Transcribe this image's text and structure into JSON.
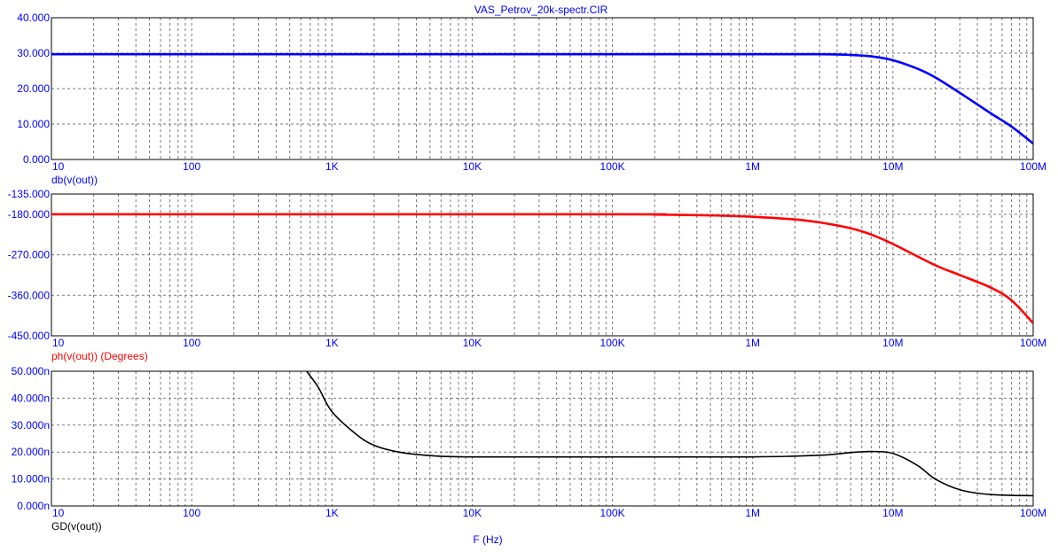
{
  "title": "VAS_Petrov_20k-spectr.CIR",
  "x_axis_label": "F (Hz)",
  "colors": {
    "grid": "#7a7a7a",
    "frame": "#000000",
    "blue": "#0000ff",
    "red": "#ff0000",
    "black": "#000000",
    "background": "#ffffff"
  },
  "chart_data": [
    {
      "type": "line",
      "title": "VAS_Petrov_20k-spectr.CIR",
      "xscale": "log",
      "xlim": [
        10,
        100000000
      ],
      "ylim": [
        0,
        40
      ],
      "ylabel": "db(v(out))",
      "x_tick_values": [
        10,
        100,
        1000,
        10000,
        100000,
        1000000,
        10000000,
        100000000
      ],
      "x_tick_labels": [
        "10",
        "100",
        "1K",
        "10K",
        "100K",
        "1M",
        "10M",
        "100M"
      ],
      "y_tick_values": [
        0,
        10,
        20,
        30,
        40
      ],
      "y_tick_labels": [
        "0.000",
        "10.000",
        "20.000",
        "30.000",
        "40.000"
      ],
      "grid": true,
      "color": "#0000ff",
      "series": [
        {
          "name": "db(v(out))",
          "x": [
            10,
            100,
            1000,
            10000,
            100000,
            1000000,
            3000000,
            5000000,
            7000000,
            10000000,
            15000000,
            20000000,
            30000000,
            50000000,
            70000000,
            100000000
          ],
          "y": [
            29.7,
            29.7,
            29.7,
            29.7,
            29.7,
            29.7,
            29.7,
            29.5,
            29.1,
            28.0,
            25.6,
            23.2,
            18.8,
            13.0,
            9.3,
            4.5
          ]
        }
      ]
    },
    {
      "type": "line",
      "xscale": "log",
      "xlim": [
        10,
        100000000
      ],
      "ylim": [
        -450,
        -135
      ],
      "ylabel": "ph(v(out)) (Degrees)",
      "x_tick_values": [
        10,
        100,
        1000,
        10000,
        100000,
        1000000,
        10000000,
        100000000
      ],
      "x_tick_labels": [
        "10",
        "100",
        "1K",
        "10K",
        "100K",
        "1M",
        "10M",
        "100M"
      ],
      "y_tick_values": [
        -135,
        -180,
        -270,
        -360,
        -450
      ],
      "y_tick_labels": [
        "-135.000",
        "-180.000",
        "-270.000",
        "-360.000",
        "-450.000"
      ],
      "grid": true,
      "color": "#ff0000",
      "series": [
        {
          "name": "ph(v(out)) (Degrees)",
          "x": [
            10,
            100000,
            200000,
            500000,
            1000000,
            2000000,
            3000000,
            5000000,
            7000000,
            10000000,
            20000000,
            30000000,
            50000000,
            70000000,
            100000000
          ],
          "y": [
            -180,
            -180,
            -180.6,
            -182.5,
            -185.5,
            -191.5,
            -198,
            -211,
            -225,
            -246,
            -293,
            -315,
            -343,
            -371,
            -422
          ]
        }
      ]
    },
    {
      "type": "line",
      "xscale": "log",
      "xlim": [
        10,
        100000000
      ],
      "ylim": [
        0,
        50
      ],
      "ylabel": "GD(v(out))",
      "xlabel": "F (Hz)",
      "x_tick_values": [
        10,
        100,
        1000,
        10000,
        100000,
        1000000,
        10000000,
        100000000
      ],
      "x_tick_labels": [
        "10",
        "100",
        "1K",
        "10K",
        "100K",
        "1M",
        "10M",
        "100M"
      ],
      "y_tick_values": [
        0,
        10,
        20,
        30,
        40,
        50
      ],
      "y_tick_labels": [
        "0.000n",
        "10.000n",
        "20.000n",
        "30.000n",
        "40.000n",
        "50.000n"
      ],
      "grid": true,
      "color": "#000000",
      "series": [
        {
          "name": "GD(v(out))",
          "x": [
            660,
            800,
            1000,
            1500,
            2000,
            3000,
            5000,
            10000,
            100000,
            1000000,
            3000000,
            5000000,
            7000000,
            10000000,
            15000000,
            20000000,
            30000000,
            50000000,
            100000000
          ],
          "y": [
            50,
            44,
            35,
            26.5,
            22.5,
            20,
            18.7,
            18.2,
            18.2,
            18.2,
            18.8,
            19.8,
            20.2,
            19.5,
            15,
            10,
            6,
            4.2,
            3.8
          ]
        }
      ]
    }
  ]
}
